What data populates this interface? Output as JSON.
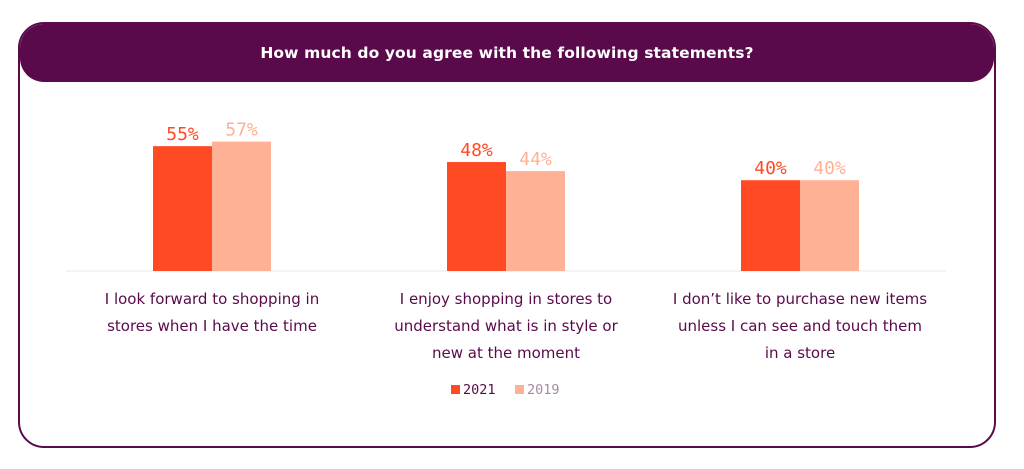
{
  "colors": {
    "frame": "#5a0a4a",
    "series_2021": "#ff4a24",
    "series_2019": "#ffb196",
    "baseline": "#ece6e6"
  },
  "chart_data": {
    "type": "bar",
    "title": "How much do you agree with the following statements?",
    "categories": [
      "I look forward to shopping in stores when I have the time",
      "I enjoy shopping in stores to understand what is in style or new at the moment",
      "I don’t like to purchase new items unless I can see and touch them in a store"
    ],
    "category_lines": [
      [
        "I look forward to shopping in",
        "stores when I have the time"
      ],
      [
        "I enjoy shopping in stores to",
        "understand what is in style or",
        "new at the moment"
      ],
      [
        "I don’t like to purchase new items",
        "unless I can see and touch them",
        "in a store"
      ]
    ],
    "series": [
      {
        "name": "2021",
        "values": [
          55,
          48,
          40
        ],
        "labels": [
          "55%",
          "48%",
          "40%"
        ],
        "color": "#ff4a24"
      },
      {
        "name": "2019",
        "values": [
          57,
          44,
          40
        ],
        "labels": [
          "57%",
          "44%",
          "40%"
        ],
        "color": "#ffb196"
      }
    ],
    "ylim": [
      0,
      100
    ],
    "legend": "bottom-center",
    "grid": false
  }
}
